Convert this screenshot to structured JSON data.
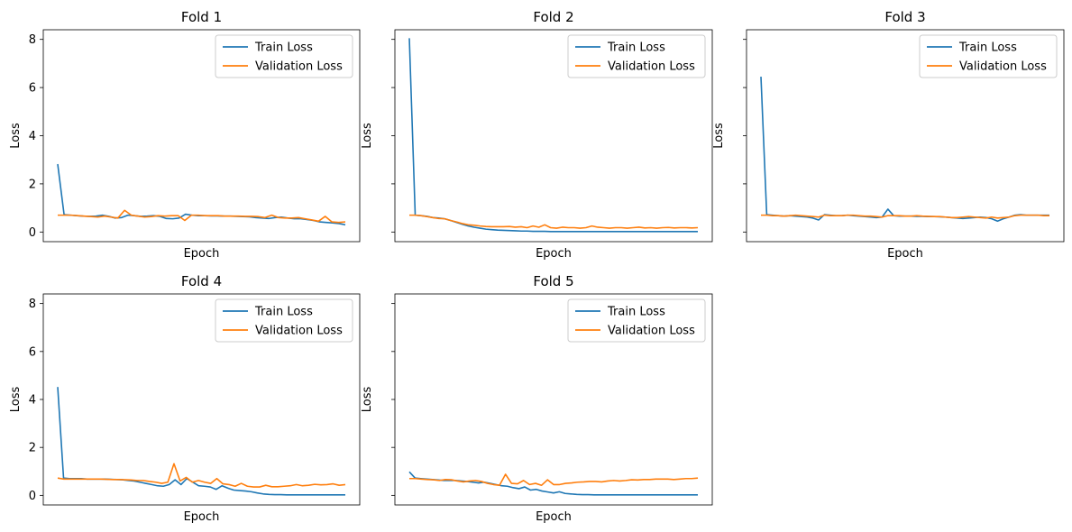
{
  "chart_data": {
    "type": "line",
    "ylim": [
      -0.4,
      8.4
    ],
    "yticks": [
      0,
      2,
      4,
      6,
      8
    ],
    "x_ticks_shown": false,
    "grid": false,
    "legend_position": "top-right",
    "series_colors": {
      "Train Loss": "#1f77b4",
      "Validation Loss": "#ff7f0e"
    },
    "panels": [
      {
        "title": "Fold 1",
        "xlabel": "Epoch",
        "ylabel": "Loss",
        "series": [
          {
            "name": "Train Loss",
            "values": [
              2.82,
              0.72,
              0.7,
              0.68,
              0.66,
              0.65,
              0.66,
              0.7,
              0.65,
              0.58,
              0.6,
              0.7,
              0.68,
              0.65,
              0.66,
              0.68,
              0.65,
              0.56,
              0.55,
              0.58,
              0.74,
              0.7,
              0.68,
              0.68,
              0.67,
              0.67,
              0.66,
              0.66,
              0.65,
              0.64,
              0.63,
              0.6,
              0.58,
              0.56,
              0.6,
              0.62,
              0.58,
              0.55,
              0.55,
              0.52,
              0.48,
              0.42,
              0.4,
              0.38,
              0.35,
              0.3
            ]
          },
          {
            "name": "Validation Loss",
            "values": [
              0.7,
              0.7,
              0.7,
              0.68,
              0.66,
              0.64,
              0.62,
              0.66,
              0.62,
              0.58,
              0.9,
              0.7,
              0.66,
              0.62,
              0.64,
              0.68,
              0.66,
              0.68,
              0.68,
              0.48,
              0.7,
              0.7,
              0.68,
              0.68,
              0.68,
              0.66,
              0.66,
              0.66,
              0.65,
              0.65,
              0.64,
              0.6,
              0.7,
              0.6,
              0.58,
              0.58,
              0.6,
              0.55,
              0.5,
              0.45,
              0.65,
              0.42,
              0.4,
              0.42
            ]
          }
        ]
      },
      {
        "title": "Fold 2",
        "xlabel": "",
        "ylabel": "Loss",
        "series": [
          {
            "name": "Train Loss",
            "values": [
              8.05,
              0.7,
              0.68,
              0.65,
              0.6,
              0.58,
              0.55,
              0.48,
              0.4,
              0.32,
              0.25,
              0.2,
              0.16,
              0.12,
              0.1,
              0.08,
              0.07,
              0.06,
              0.05,
              0.04,
              0.04,
              0.03,
              0.03,
              0.03,
              0.02,
              0.02,
              0.02,
              0.02,
              0.02,
              0.02,
              0.02,
              0.02,
              0.02,
              0.02,
              0.02,
              0.02,
              0.02,
              0.02,
              0.02,
              0.02,
              0.02,
              0.02,
              0.02,
              0.02,
              0.02,
              0.02,
              0.02,
              0.02,
              0.02,
              0.02
            ]
          },
          {
            "name": "Validation Loss",
            "values": [
              0.7,
              0.7,
              0.68,
              0.64,
              0.6,
              0.56,
              0.55,
              0.48,
              0.42,
              0.35,
              0.3,
              0.28,
              0.25,
              0.23,
              0.22,
              0.22,
              0.22,
              0.23,
              0.2,
              0.22,
              0.18,
              0.25,
              0.2,
              0.3,
              0.18,
              0.16,
              0.2,
              0.18,
              0.18,
              0.16,
              0.18,
              0.25,
              0.2,
              0.18,
              0.16,
              0.18,
              0.18,
              0.16,
              0.18,
              0.2,
              0.17,
              0.18,
              0.16,
              0.18,
              0.19,
              0.17,
              0.18,
              0.18,
              0.17,
              0.18
            ]
          }
        ]
      },
      {
        "title": "Fold 3",
        "xlabel": "",
        "ylabel": "Loss",
        "series": [
          {
            "name": "Train Loss",
            "values": [
              6.45,
              0.72,
              0.7,
              0.68,
              0.66,
              0.68,
              0.66,
              0.64,
              0.62,
              0.58,
              0.5,
              0.72,
              0.7,
              0.68,
              0.68,
              0.7,
              0.68,
              0.66,
              0.64,
              0.62,
              0.6,
              0.62,
              0.95,
              0.68,
              0.66,
              0.66,
              0.66,
              0.65,
              0.65,
              0.64,
              0.64,
              0.63,
              0.62,
              0.6,
              0.58,
              0.56,
              0.58,
              0.6,
              0.62,
              0.6,
              0.55,
              0.45,
              0.55,
              0.62,
              0.7,
              0.72,
              0.7,
              0.7,
              0.7,
              0.7,
              0.7
            ]
          },
          {
            "name": "Validation Loss",
            "values": [
              0.7,
              0.7,
              0.68,
              0.68,
              0.66,
              0.68,
              0.7,
              0.68,
              0.66,
              0.64,
              0.62,
              0.7,
              0.68,
              0.68,
              0.68,
              0.7,
              0.7,
              0.68,
              0.66,
              0.66,
              0.64,
              0.62,
              0.68,
              0.68,
              0.68,
              0.66,
              0.66,
              0.68,
              0.66,
              0.65,
              0.64,
              0.64,
              0.62,
              0.6,
              0.6,
              0.62,
              0.64,
              0.62,
              0.6,
              0.58,
              0.62,
              0.58,
              0.6,
              0.62,
              0.68,
              0.7,
              0.7,
              0.7,
              0.7,
              0.68,
              0.68
            ]
          }
        ]
      },
      {
        "title": "Fold 4",
        "xlabel": "Epoch",
        "ylabel": "Loss",
        "series": [
          {
            "name": "Train Loss",
            "values": [
              4.52,
              0.72,
              0.7,
              0.7,
              0.7,
              0.68,
              0.68,
              0.68,
              0.68,
              0.67,
              0.66,
              0.65,
              0.62,
              0.6,
              0.55,
              0.5,
              0.45,
              0.4,
              0.38,
              0.45,
              0.65,
              0.45,
              0.7,
              0.55,
              0.4,
              0.38,
              0.35,
              0.25,
              0.4,
              0.3,
              0.22,
              0.2,
              0.18,
              0.15,
              0.1,
              0.06,
              0.04,
              0.03,
              0.03,
              0.02,
              0.02,
              0.02,
              0.02,
              0.02,
              0.02,
              0.02,
              0.02,
              0.02,
              0.02,
              0.02
            ]
          },
          {
            "name": "Validation Loss",
            "values": [
              0.72,
              0.68,
              0.68,
              0.68,
              0.68,
              0.68,
              0.68,
              0.68,
              0.67,
              0.66,
              0.66,
              0.65,
              0.64,
              0.62,
              0.62,
              0.58,
              0.55,
              0.5,
              0.55,
              1.32,
              0.6,
              0.75,
              0.55,
              0.62,
              0.55,
              0.5,
              0.7,
              0.48,
              0.45,
              0.38,
              0.5,
              0.38,
              0.35,
              0.35,
              0.42,
              0.36,
              0.36,
              0.38,
              0.4,
              0.45,
              0.4,
              0.42,
              0.46,
              0.44,
              0.45,
              0.48,
              0.42,
              0.45
            ]
          }
        ]
      },
      {
        "title": "Fold 5",
        "xlabel": "Epoch",
        "ylabel": "Loss",
        "series": [
          {
            "name": "Train Loss",
            "values": [
              0.98,
              0.72,
              0.7,
              0.68,
              0.66,
              0.64,
              0.62,
              0.62,
              0.62,
              0.6,
              0.58,
              0.55,
              0.52,
              0.55,
              0.5,
              0.45,
              0.4,
              0.38,
              0.32,
              0.28,
              0.35,
              0.22,
              0.25,
              0.18,
              0.14,
              0.1,
              0.15,
              0.08,
              0.06,
              0.04,
              0.03,
              0.03,
              0.02,
              0.02,
              0.02,
              0.02,
              0.02,
              0.02,
              0.02,
              0.02,
              0.02,
              0.02,
              0.02,
              0.02,
              0.02,
              0.02,
              0.02,
              0.02,
              0.02,
              0.02,
              0.02
            ]
          },
          {
            "name": "Validation Loss",
            "values": [
              0.7,
              0.7,
              0.68,
              0.66,
              0.65,
              0.62,
              0.66,
              0.65,
              0.6,
              0.56,
              0.6,
              0.62,
              0.58,
              0.5,
              0.45,
              0.42,
              0.88,
              0.5,
              0.48,
              0.62,
              0.45,
              0.5,
              0.42,
              0.65,
              0.45,
              0.45,
              0.5,
              0.52,
              0.55,
              0.56,
              0.58,
              0.58,
              0.56,
              0.6,
              0.62,
              0.6,
              0.62,
              0.65,
              0.64,
              0.66,
              0.66,
              0.68,
              0.68,
              0.68,
              0.66,
              0.68,
              0.7,
              0.7,
              0.72
            ]
          }
        ]
      }
    ]
  }
}
